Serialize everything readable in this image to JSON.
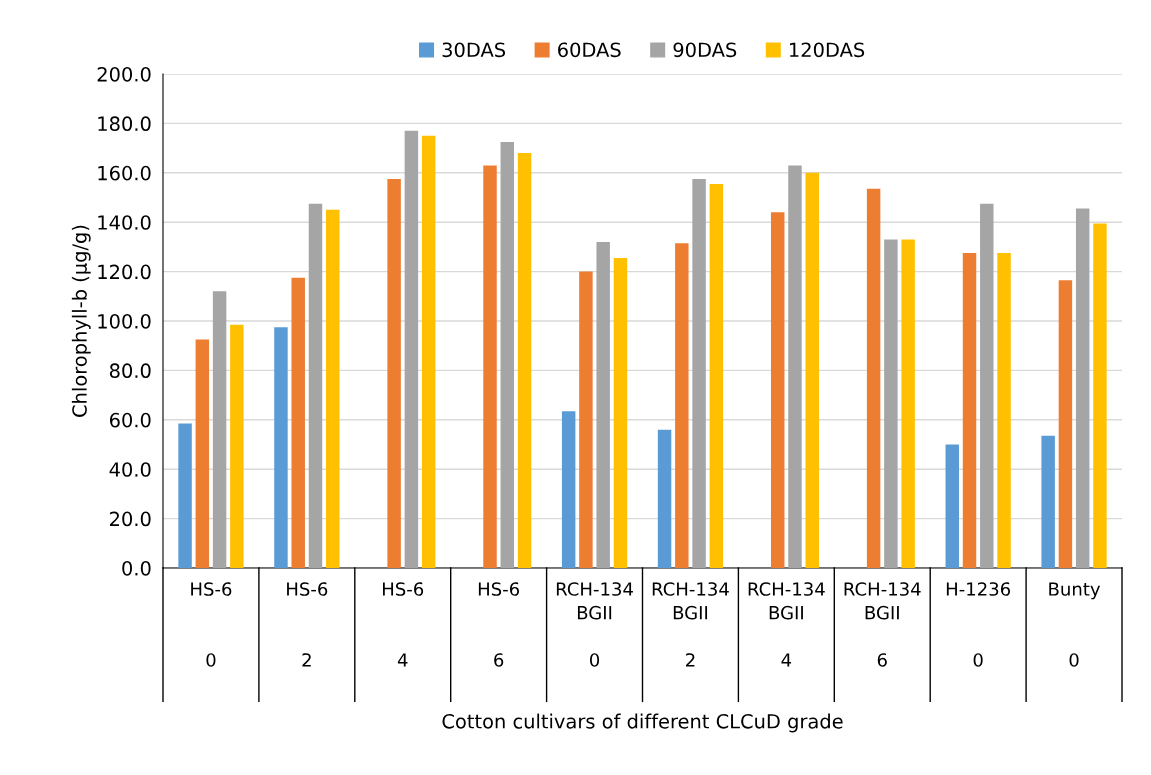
{
  "chart_data": {
    "type": "bar",
    "annotations": [
      "Cotton cultivars of different CLCuD grade"
    ],
    "ylabel": "Chlorophyll-b (µg/g)",
    "categories": [
      "HS-6\n\n\n0",
      "HS-6\n\n\n2",
      "HS-6\n\n\n4",
      "HS-6\n\n\n6",
      "RCH-134\nBGII\n\n0",
      "RCH-134\nBGII\n\n2",
      "RCH-134\nBGII\n\n4",
      "RCH-134\nBGII\n\n6",
      "H-1236\n\n\n0",
      "Bunty\n\n\n0"
    ],
    "series": [
      {
        "name": "30DAS",
        "color": "#5b9bd5",
        "values": [
          58.5,
          97.5,
          null,
          null,
          63.5,
          56,
          null,
          null,
          50,
          53.5
        ]
      },
      {
        "name": "60DAS",
        "color": "#ed7d31",
        "values": [
          92.5,
          117.5,
          157.5,
          163,
          120,
          131.5,
          144,
          153.5,
          127.5,
          116.5
        ]
      },
      {
        "name": "90DAS",
        "color": "#a5a5a5",
        "values": [
          112,
          147.5,
          177,
          172.5,
          132,
          157.5,
          163,
          133,
          147.5,
          145.5
        ]
      },
      {
        "name": "120DAS",
        "color": "#ffc000",
        "values": [
          98.5,
          145,
          175,
          168,
          125.5,
          155.5,
          160,
          133,
          127.5,
          139.5
        ]
      }
    ],
    "ylim": [
      0,
      200
    ],
    "yticks": [
      {
        "value": 0,
        "label": "0.0"
      },
      {
        "value": 20,
        "label": "20.0"
      },
      {
        "value": 40,
        "label": "40.0"
      },
      {
        "value": 60,
        "label": "60.0"
      },
      {
        "value": 80,
        "label": "80.0"
      },
      {
        "value": 100,
        "label": "100.0"
      },
      {
        "value": 120,
        "label": "120.0"
      },
      {
        "value": 140,
        "label": "140.0"
      },
      {
        "value": 160,
        "label": "160.0"
      },
      {
        "value": 180,
        "label": "180.0"
      },
      {
        "value": 200,
        "label": "200.0"
      }
    ],
    "grid": "y",
    "legend": "top"
  }
}
